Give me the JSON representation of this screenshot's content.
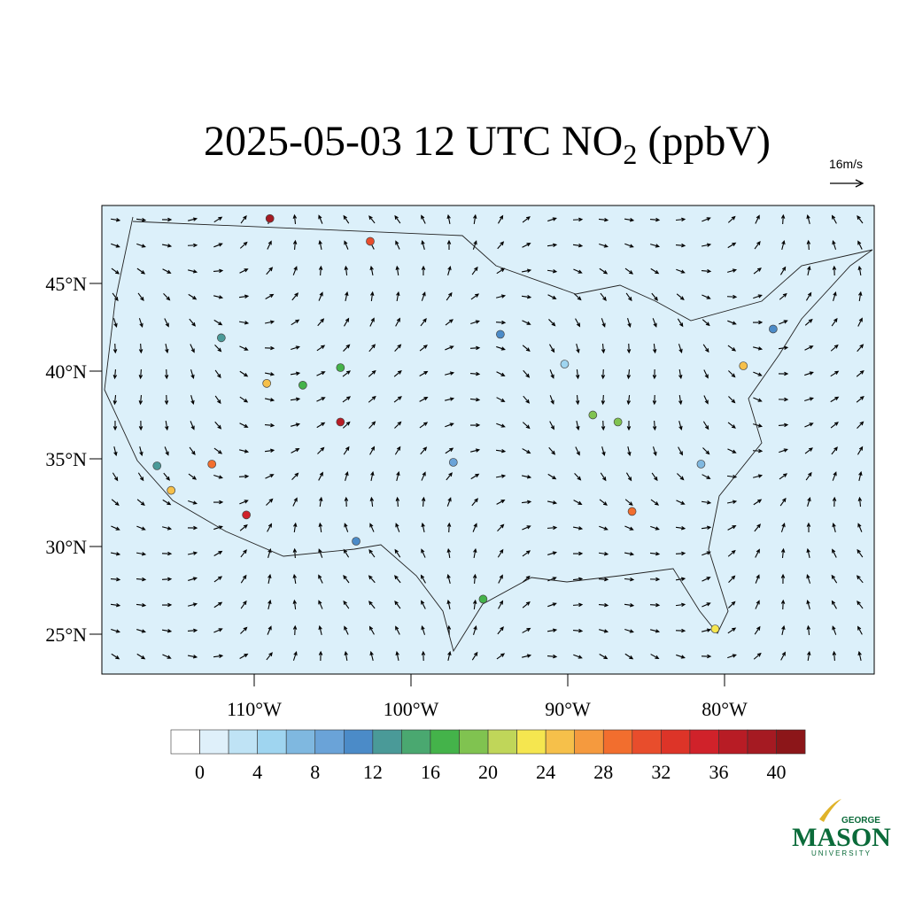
{
  "title": "2025-05-03 12 UTC NO",
  "title_subscript": "2",
  "title_suffix": " (ppbV)",
  "reference_vector": "16m/s",
  "map": {
    "lon_ticks": [
      {
        "value": -110,
        "label": "110°W"
      },
      {
        "value": -100,
        "label": "100°W"
      },
      {
        "value": -90,
        "label": "90°W"
      },
      {
        "value": -80,
        "label": "80°W"
      }
    ],
    "lat_ticks": [
      {
        "value": 45,
        "label": "45°N"
      },
      {
        "value": 40,
        "label": "40°N"
      },
      {
        "value": 35,
        "label": "35°N"
      },
      {
        "value": 30,
        "label": "30°N"
      },
      {
        "value": 25,
        "label": "25°N"
      }
    ],
    "stations": [
      {
        "lon": -109,
        "lat": 48.7,
        "value": 38
      },
      {
        "lon": -102.6,
        "lat": 47.4,
        "value": 30
      },
      {
        "lon": -104.5,
        "lat": 37.1,
        "value": 36
      },
      {
        "lon": -85.9,
        "lat": 32.0,
        "value": 28
      },
      {
        "lon": -112.7,
        "lat": 34.7,
        "value": 28
      },
      {
        "lon": -110.5,
        "lat": 31.8,
        "value": 34
      },
      {
        "lon": -115.3,
        "lat": 33.2,
        "value": 24
      },
      {
        "lon": -78.8,
        "lat": 40.3,
        "value": 24
      },
      {
        "lon": -109.2,
        "lat": 39.3,
        "value": 24
      },
      {
        "lon": -88.4,
        "lat": 37.5,
        "value": 18
      },
      {
        "lon": -86.8,
        "lat": 37.1,
        "value": 18
      },
      {
        "lon": -104.5,
        "lat": 40.2,
        "value": 16
      },
      {
        "lon": -106.9,
        "lat": 39.2,
        "value": 16
      },
      {
        "lon": -80.6,
        "lat": 25.3,
        "value": 22
      },
      {
        "lon": -95.4,
        "lat": 27.0,
        "value": 16
      },
      {
        "lon": -103.5,
        "lat": 30.3,
        "value": 10
      },
      {
        "lon": -94.3,
        "lat": 42.1,
        "value": 10
      },
      {
        "lon": -76.9,
        "lat": 42.4,
        "value": 10
      },
      {
        "lon": -112.1,
        "lat": 41.9,
        "value": 12
      },
      {
        "lon": -116.2,
        "lat": 34.6,
        "value": 12
      },
      {
        "lon": -90.2,
        "lat": 40.4,
        "value": 4
      },
      {
        "lon": -97.3,
        "lat": 34.8,
        "value": 8
      },
      {
        "lon": -81.5,
        "lat": 34.7,
        "value": 6
      }
    ]
  },
  "colorbar": {
    "colors": [
      "#ffffff",
      "#dff0fa",
      "#bfe3f5",
      "#9fd5f0",
      "#7fb8e0",
      "#6aa3d8",
      "#4b8bc8",
      "#4a9a98",
      "#4aa870",
      "#44b34a",
      "#80c350",
      "#c0d659",
      "#f5e64f",
      "#f6c04a",
      "#f59a3e",
      "#f26e2e",
      "#e84d2c",
      "#dd3428",
      "#d0222a",
      "#b81c25",
      "#a51a22",
      "#8c1619"
    ],
    "ticks": [
      0,
      4,
      8,
      12,
      16,
      20,
      24,
      28,
      32,
      36,
      40
    ]
  },
  "logo": {
    "top": "GEORGE",
    "main": "MASON",
    "bottom": "UNIVERSITY"
  }
}
